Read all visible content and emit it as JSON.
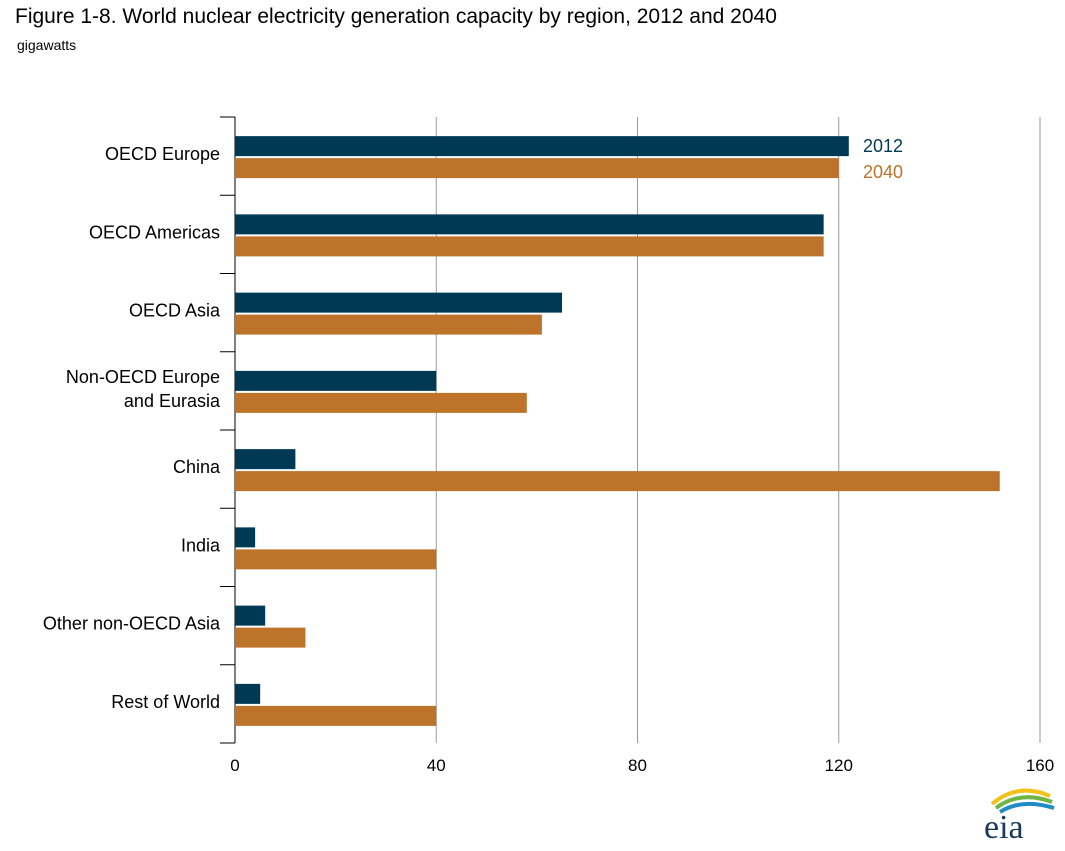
{
  "title": "Figure 1-8. World nuclear electricity generation capacity by region, 2012 and 2040",
  "subtitle": "gigawatts",
  "logo_text": "eia",
  "chart_data": {
    "type": "bar",
    "orientation": "horizontal",
    "categories": [
      [
        "OECD Europe"
      ],
      [
        "OECD Americas"
      ],
      [
        "OECD Asia"
      ],
      [
        "Non-OECD Europe",
        "and Eurasia"
      ],
      [
        "China"
      ],
      [
        "India"
      ],
      [
        "Other non-OECD Asia"
      ],
      [
        "Rest of World"
      ]
    ],
    "series": [
      {
        "name": "2012",
        "color": "#003953",
        "values": [
          122,
          117,
          65,
          40,
          12,
          4,
          6,
          5
        ]
      },
      {
        "name": "2040",
        "color": "#bd732a",
        "values": [
          120,
          117,
          61,
          58,
          152,
          40,
          14,
          40
        ]
      }
    ],
    "xlim": [
      0,
      160
    ],
    "xticks": [
      0,
      40,
      80,
      120,
      160
    ],
    "grid": true,
    "legend_position": "top-right"
  }
}
